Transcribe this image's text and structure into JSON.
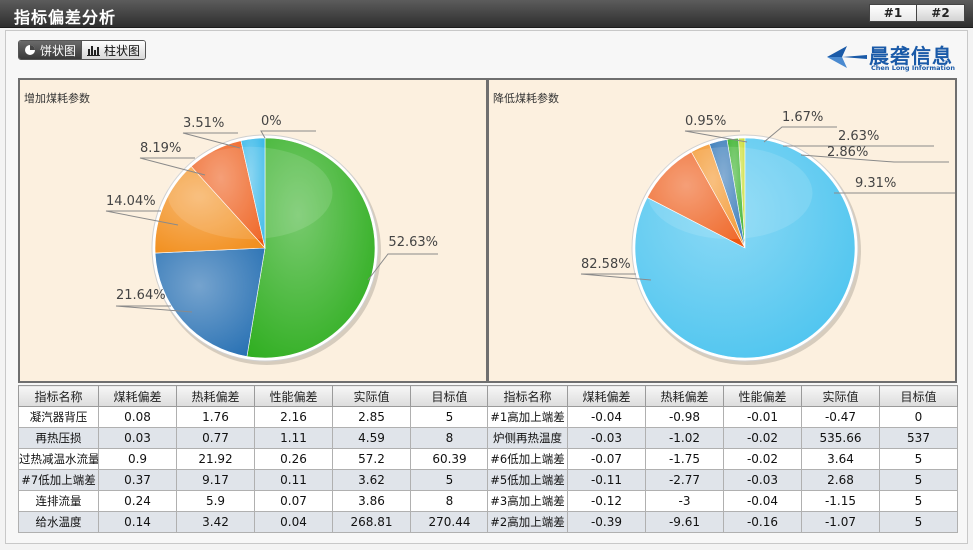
{
  "window": {
    "title": "指标偏差分析",
    "tabs": [
      "#1",
      "#2"
    ]
  },
  "view_toggle": {
    "pie_label": "饼状图",
    "bar_label": "柱状图",
    "active": "pie"
  },
  "logo": {
    "name": "晨砻信息",
    "subtitle": "Chen Long Information"
  },
  "colors": {
    "green": "#2faf1f",
    "blue": "#2a6fb0",
    "orange": "#f28c1c",
    "red": "#ef5a12",
    "cyan": "#3fb8e6",
    "yellow": "#c6d82a",
    "background": "#fcf0df"
  },
  "chart_data": [
    {
      "type": "pie",
      "title": "增加煤耗参数",
      "slices": [
        {
          "label": "52.63%",
          "value": 52.63,
          "color": "#2fae20"
        },
        {
          "label": "21.64%",
          "value": 21.64,
          "color": "#2a72b4"
        },
        {
          "label": "14.04%",
          "value": 14.04,
          "color": "#f29020"
        },
        {
          "label": "8.19%",
          "value": 8.19,
          "color": "#ee5812"
        },
        {
          "label": "3.51%",
          "value": 3.51,
          "color": "#32b6e8"
        },
        {
          "label": "0%",
          "value": 0.0,
          "color": "#c6d82a"
        }
      ]
    },
    {
      "type": "pie",
      "title": "降低煤耗参数",
      "slices": [
        {
          "label": "0.95%",
          "value": 0.95,
          "color": "#c8dc2a"
        },
        {
          "label": "1.67%",
          "value": 1.67,
          "color": "#2fae20"
        },
        {
          "label": "2.63%",
          "value": 2.63,
          "color": "#2a72b4"
        },
        {
          "label": "2.86%",
          "value": 2.86,
          "color": "#f29020"
        },
        {
          "label": "9.31%",
          "value": 9.31,
          "color": "#ee5812"
        },
        {
          "label": "82.58%",
          "value": 82.58,
          "color": "#4cc4ef"
        }
      ]
    }
  ],
  "table_headers": [
    "指标名称",
    "煤耗偏差",
    "热耗偏差",
    "性能偏差",
    "实际值",
    "目标值"
  ],
  "left_table": [
    [
      "凝汽器背压",
      "0.08",
      "1.76",
      "2.16",
      "2.85",
      "5"
    ],
    [
      "再热压损",
      "0.03",
      "0.77",
      "1.11",
      "4.59",
      "8"
    ],
    [
      "过热减温水流量",
      "0.9",
      "21.92",
      "0.26",
      "57.2",
      "60.39"
    ],
    [
      "#7低加上端差",
      "0.37",
      "9.17",
      "0.11",
      "3.62",
      "5"
    ],
    [
      "连排流量",
      "0.24",
      "5.9",
      "0.07",
      "3.86",
      "8"
    ],
    [
      "给水温度",
      "0.14",
      "3.42",
      "0.04",
      "268.81",
      "270.44"
    ]
  ],
  "right_table": [
    [
      "#1高加上端差",
      "-0.04",
      "-0.98",
      "-0.01",
      "-0.47",
      "0"
    ],
    [
      "炉侧再热温度",
      "-0.03",
      "-1.02",
      "-0.02",
      "535.66",
      "537"
    ],
    [
      "#6低加上端差",
      "-0.07",
      "-1.75",
      "-0.02",
      "3.64",
      "5"
    ],
    [
      "#5低加上端差",
      "-0.11",
      "-2.77",
      "-0.03",
      "2.68",
      "5"
    ],
    [
      "#3高加上端差",
      "-0.12",
      "-3",
      "-0.04",
      "-1.15",
      "5"
    ],
    [
      "#2高加上端差",
      "-0.39",
      "-9.61",
      "-0.16",
      "-1.07",
      "5"
    ]
  ]
}
